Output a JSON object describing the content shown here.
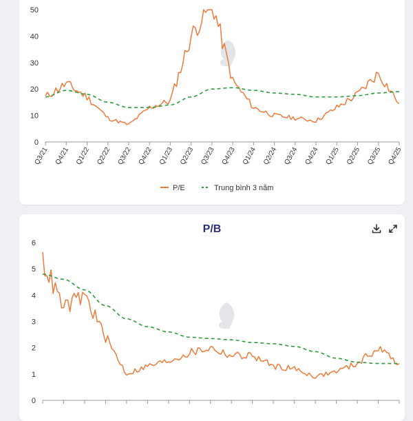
{
  "charts": {
    "pe": {
      "x_ticks": [
        "Q3/21",
        "Q4/21",
        "Q1/22",
        "Q2/22",
        "Q3/22",
        "Q4/22",
        "Q1/23",
        "Q2/23",
        "Q3/23",
        "Q4/23",
        "Q1/24",
        "Q2/24",
        "Q3/24",
        "Q4/24",
        "Q1/25",
        "Q2/25",
        "Q3/25",
        "Q4/25"
      ],
      "legend": [
        "P/E",
        "Trung bình 3 năm"
      ]
    },
    "pb": {
      "title": "P/B",
      "download_icon": "download-icon",
      "expand_icon": "expand-icon"
    }
  },
  "colors": {
    "series": "#f07a3a",
    "average": "#2e9a3c",
    "title": "#2b2f7a",
    "watermark": "#c9ccd2"
  },
  "chart_data": [
    {
      "type": "line",
      "title": "",
      "xlabel": "",
      "ylabel": "",
      "ylim": [
        0,
        50
      ],
      "yticks": [
        0,
        10,
        20,
        30,
        40,
        50
      ],
      "grid": false,
      "legend_position": "bottom",
      "x": [
        "Q3/21",
        "Q4/21",
        "Q1/22",
        "Q2/22",
        "Q3/22",
        "Q4/22",
        "Q1/23",
        "Q2/23",
        "Q3/23",
        "Q4/23",
        "Q1/24",
        "Q2/24",
        "Q3/24",
        "Q4/24",
        "Q1/25",
        "Q2/25",
        "Q3/25",
        "Q4/25"
      ],
      "series": [
        {
          "name": "P/E",
          "style": "solid",
          "values": [
            17,
            22,
            17,
            9,
            6.5,
            13,
            15.5,
            40,
            53,
            23,
            13,
            10,
            9,
            8,
            13,
            18,
            26,
            14.5
          ]
        },
        {
          "name": "Trung bình 3 năm",
          "style": "dashed",
          "values": [
            17,
            19.5,
            18,
            15,
            13,
            13,
            14,
            17,
            20,
            20.5,
            19.5,
            18.5,
            18,
            17,
            17,
            17.5,
            18.5,
            19
          ]
        }
      ]
    },
    {
      "type": "line",
      "title": "P/B",
      "xlabel": "",
      "ylabel": "",
      "ylim": [
        0,
        6
      ],
      "yticks": [
        0,
        1,
        2,
        3,
        4,
        5,
        6
      ],
      "grid": false,
      "x": [
        "Q3/21",
        "Q4/21",
        "Q1/22",
        "Q2/22",
        "Q3/22",
        "Q4/22",
        "Q1/23",
        "Q2/23",
        "Q3/23",
        "Q4/23",
        "Q1/24",
        "Q2/24",
        "Q3/24",
        "Q4/24",
        "Q1/25",
        "Q2/25",
        "Q3/25",
        "Q4/25"
      ],
      "series": [
        {
          "name": "P/B",
          "style": "solid",
          "values": [
            5.3,
            3.5,
            4.0,
            2.4,
            1.0,
            1.3,
            1.5,
            1.8,
            2.0,
            1.7,
            1.7,
            1.3,
            1.2,
            0.9,
            1.1,
            1.4,
            2.0,
            1.4
          ]
        },
        {
          "name": "Trung bình 3 năm",
          "style": "dashed",
          "values": [
            4.8,
            4.6,
            4.2,
            3.6,
            3.1,
            2.8,
            2.6,
            2.4,
            2.35,
            2.3,
            2.2,
            2.15,
            2.05,
            1.85,
            1.6,
            1.45,
            1.4,
            1.4
          ]
        }
      ]
    }
  ]
}
